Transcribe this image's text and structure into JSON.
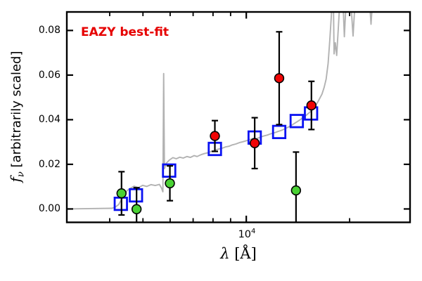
{
  "chart_data": {
    "type": "scatter",
    "description": "Galaxy SED: observed photometry with error bars and EAZY best-fit template spectrum and template photometry",
    "annotation": "EAZY best-fit",
    "annotation_color": "#e60000",
    "xlabel": "λ [Å]",
    "ylabel": "f_ν [arbitrarily scaled]",
    "xlabel_parts": {
      "lambda": "λ",
      "rest": " [Å]"
    },
    "ylabel_parts": {
      "f": "f",
      "sub": "ν",
      "rest": " [arbitrarily scaled]"
    },
    "xscale": "log",
    "xlim": [
      3000,
      30000
    ],
    "ylim": [
      -0.006,
      0.0883
    ],
    "grid": false,
    "legend": "none",
    "yticks": [
      {
        "value": 0.0,
        "label": "0.00"
      },
      {
        "value": 0.02,
        "label": "0.02"
      },
      {
        "value": 0.04,
        "label": "0.04"
      },
      {
        "value": 0.06,
        "label": "0.06"
      },
      {
        "value": 0.08,
        "label": "0.08"
      }
    ],
    "xticks": {
      "major": [
        {
          "value": 10000
        }
      ],
      "major_label": {
        "base": "10",
        "exp": "4"
      },
      "minor": [
        4000,
        5000,
        6000,
        7000,
        8000,
        9000,
        20000
      ]
    },
    "series": [
      {
        "name": "eazy_model_spectrum",
        "kind": "line",
        "color": "#b2b2b2",
        "points": [
          [
            3000,
            0.0
          ],
          [
            4060,
            0.0003
          ],
          [
            4150,
            0.0008
          ],
          [
            4250,
            0.002
          ],
          [
            4330,
            0.0043
          ],
          [
            4415,
            0.0065
          ],
          [
            4500,
            0.0083
          ],
          [
            4600,
            0.0093
          ],
          [
            4715,
            0.0102
          ],
          [
            4850,
            0.0095
          ],
          [
            4990,
            0.0106
          ],
          [
            5130,
            0.0101
          ],
          [
            5280,
            0.0109
          ],
          [
            5430,
            0.0105
          ],
          [
            5585,
            0.011
          ],
          [
            5665,
            0.0093
          ],
          [
            5715,
            0.0077
          ],
          [
            5745,
            0.0607
          ],
          [
            5775,
            0.0181
          ],
          [
            5855,
            0.0206
          ],
          [
            5965,
            0.0219
          ],
          [
            6110,
            0.023
          ],
          [
            6250,
            0.0225
          ],
          [
            6400,
            0.0232
          ],
          [
            6550,
            0.0228
          ],
          [
            6720,
            0.0235
          ],
          [
            6870,
            0.0231
          ],
          [
            7050,
            0.0239
          ],
          [
            7190,
            0.0235
          ],
          [
            7370,
            0.0243
          ],
          [
            7540,
            0.0248
          ],
          [
            7730,
            0.0252
          ],
          [
            7910,
            0.0258
          ],
          [
            8100,
            0.0263
          ],
          [
            8290,
            0.0268
          ],
          [
            8490,
            0.0272
          ],
          [
            8690,
            0.0278
          ],
          [
            8900,
            0.0281
          ],
          [
            9100,
            0.0287
          ],
          [
            9320,
            0.0291
          ],
          [
            9540,
            0.0297
          ],
          [
            9770,
            0.0301
          ],
          [
            10000,
            0.0306
          ],
          [
            10240,
            0.0311
          ],
          [
            10480,
            0.0317
          ],
          [
            10730,
            0.0315
          ],
          [
            10980,
            0.0322
          ],
          [
            11240,
            0.0327
          ],
          [
            11510,
            0.0331
          ],
          [
            11790,
            0.0337
          ],
          [
            12070,
            0.0341
          ],
          [
            12360,
            0.0347
          ],
          [
            12650,
            0.0352
          ],
          [
            12950,
            0.0359
          ],
          [
            13260,
            0.0367
          ],
          [
            13580,
            0.0376
          ],
          [
            13900,
            0.0386
          ],
          [
            14230,
            0.0396
          ],
          [
            14570,
            0.0407
          ],
          [
            14920,
            0.0419
          ],
          [
            15270,
            0.0432
          ],
          [
            15700,
            0.0449
          ],
          [
            16150,
            0.0479
          ],
          [
            16620,
            0.0515
          ],
          [
            16860,
            0.0545
          ],
          [
            17090,
            0.0582
          ],
          [
            17310,
            0.0652
          ],
          [
            17500,
            0.0752
          ],
          [
            17700,
            0.087
          ],
          [
            17800,
            0.096
          ],
          [
            17930,
            0.096
          ],
          [
            18020,
            0.0695
          ],
          [
            18170,
            0.0745
          ],
          [
            18340,
            0.0688
          ],
          [
            18560,
            0.082
          ],
          [
            18780,
            0.096
          ],
          [
            19100,
            0.096
          ],
          [
            19310,
            0.0772
          ],
          [
            19580,
            0.096
          ],
          [
            20100,
            0.096
          ],
          [
            20470,
            0.0775
          ],
          [
            20800,
            0.096
          ],
          [
            22800,
            0.096
          ],
          [
            23090,
            0.0828
          ],
          [
            23400,
            0.096
          ],
          [
            29900,
            0.096
          ]
        ]
      },
      {
        "name": "eazy_template_photometry_squares",
        "kind": "open_square",
        "edge_color": "#0a12f2",
        "points": [
          {
            "lambda": 4310,
            "flux": 0.0023
          },
          {
            "lambda": 4770,
            "flux": 0.0061
          },
          {
            "lambda": 5960,
            "flux": 0.0172
          },
          {
            "lambda": 8100,
            "flux": 0.0269
          },
          {
            "lambda": 10580,
            "flux": 0.032
          },
          {
            "lambda": 12470,
            "flux": 0.0345
          },
          {
            "lambda": 14030,
            "flux": 0.0394
          },
          {
            "lambda": 15440,
            "flux": 0.0428
          }
        ]
      },
      {
        "name": "observed_photometry_green_circles",
        "kind": "circle",
        "fill_color": "#49d133",
        "edge_color": "#000000",
        "points": [
          {
            "lambda": 4330,
            "flux": 0.007,
            "err": 0.0097
          },
          {
            "lambda": 4790,
            "flux": -0.0001,
            "err": 0.0096
          },
          {
            "lambda": 5990,
            "flux": 0.0115,
            "err": 0.0078
          },
          {
            "lambda": 13960,
            "flux": 0.0083,
            "err": 0.0172
          }
        ]
      },
      {
        "name": "observed_photometry_red_circles",
        "kind": "circle",
        "fill_color": "#f00505",
        "edge_color": "#000000",
        "points": [
          {
            "lambda": 8100,
            "flux": 0.0327,
            "err": 0.0069
          },
          {
            "lambda": 10580,
            "flux": 0.0295,
            "err": 0.0114
          },
          {
            "lambda": 12470,
            "flux": 0.0586,
            "err": 0.0208
          },
          {
            "lambda": 15480,
            "flux": 0.0464,
            "err": 0.0108
          }
        ]
      }
    ]
  }
}
